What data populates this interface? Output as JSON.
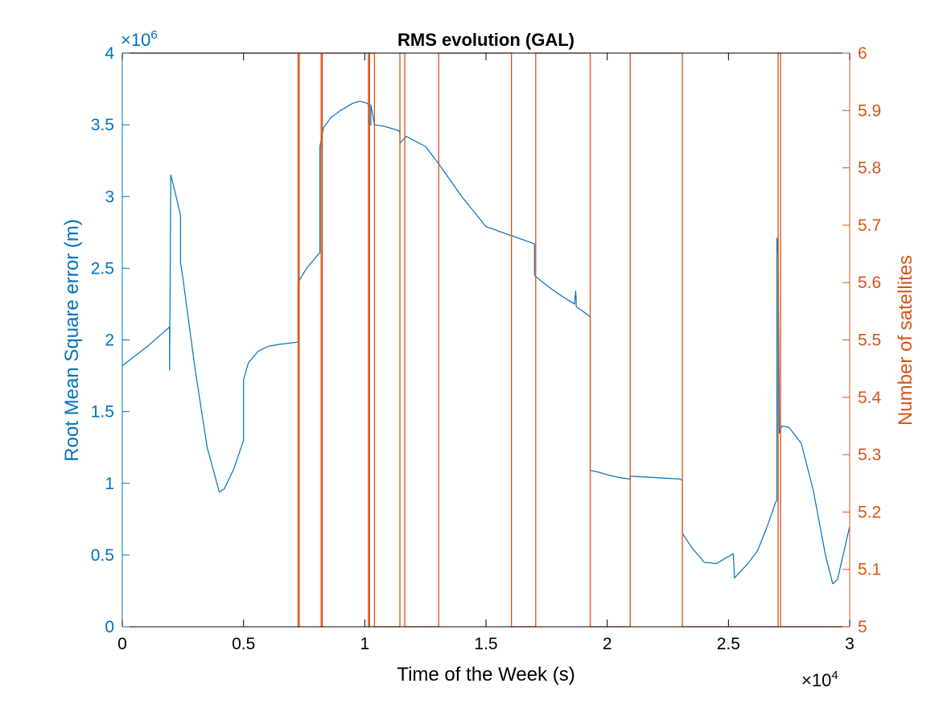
{
  "chart_data": {
    "type": "line",
    "title": "RMS evolution (GAL)",
    "xlabel": "Time of the Week (s)",
    "ylabel_left": "Root Mean Square error (m)",
    "ylabel_right": "Number of satellites",
    "x_multiplier": "×10",
    "x_multiplier_exp": "4",
    "y_left_multiplier": "×10",
    "y_left_multiplier_exp": "6",
    "xlim": [
      0,
      30000
    ],
    "ylim_left": [
      0,
      4000000
    ],
    "ylim_right": [
      5,
      6
    ],
    "x_ticks": [
      0,
      5000,
      10000,
      15000,
      20000,
      25000,
      30000
    ],
    "x_tick_labels": [
      "0",
      "0.5",
      "1",
      "1.5",
      "2",
      "2.5",
      "3"
    ],
    "y_left_ticks": [
      0,
      500000,
      1000000,
      1500000,
      2000000,
      2500000,
      3000000,
      3500000,
      4000000
    ],
    "y_left_tick_labels": [
      "0",
      "0.5",
      "1",
      "1.5",
      "2",
      "2.5",
      "3",
      "3.5",
      "4"
    ],
    "y_right_ticks": [
      5,
      5.1,
      5.2,
      5.3,
      5.4,
      5.5,
      5.6,
      5.7,
      5.8,
      5.9,
      6
    ],
    "y_right_tick_labels": [
      "5",
      "5.1",
      "5.2",
      "5.3",
      "5.4",
      "5.5",
      "5.6",
      "5.7",
      "5.8",
      "5.9",
      "6"
    ],
    "grid": false,
    "colors": {
      "left": "#0072BD",
      "right": "#D95319",
      "axis": "#000000"
    },
    "series": [
      {
        "axis": "left",
        "x": [
          0,
          1000,
          1950,
          1950,
          2000,
          2150,
          2400,
          2400,
          2500,
          3000,
          3500,
          4000,
          4200,
          4600,
          5000,
          5000,
          5200,
          5600,
          6000,
          6500,
          7250,
          7250,
          7600,
          8000,
          8150,
          8150,
          8300,
          8600,
          9000,
          9500,
          9800,
          10100,
          10200,
          10200,
          10250,
          10250,
          10400,
          10800,
          11400,
          11450,
          11450,
          11700,
          12500,
          13000,
          14000,
          15000,
          16000,
          16500,
          17000,
          17000,
          17500,
          18000,
          18650,
          18700,
          18720,
          18720,
          19000,
          19300,
          19300,
          19600,
          20000,
          20500,
          20950,
          20950,
          21500,
          22000,
          23000,
          23100,
          23100,
          23500,
          24000,
          24500,
          25200,
          25250,
          25250,
          25800,
          26200,
          26600,
          26950,
          27000,
          27000,
          27050,
          27100,
          27200,
          27500,
          28000,
          28500,
          29000,
          29300,
          29500,
          29700,
          30000
        ],
        "y": [
          1820000,
          1950000,
          2090000,
          1790000,
          3150000,
          3050000,
          2870000,
          2540000,
          2430000,
          1800000,
          1250000,
          940000,
          960000,
          1100000,
          1300000,
          1720000,
          1840000,
          1920000,
          1955000,
          1970000,
          1985000,
          2400000,
          2500000,
          2580000,
          2610000,
          3350000,
          3480000,
          3550000,
          3600000,
          3650000,
          3665000,
          3650000,
          3630000,
          3500000,
          3500000,
          3640000,
          3500000,
          3490000,
          3460000,
          3440000,
          3370000,
          3420000,
          3350000,
          3240000,
          3000000,
          2790000,
          2730000,
          2700000,
          2670000,
          2450000,
          2380000,
          2320000,
          2250000,
          2340000,
          2280000,
          2230000,
          2200000,
          2160000,
          1090000,
          1080000,
          1060000,
          1040000,
          1030000,
          1050000,
          1045000,
          1040000,
          1030000,
          1020000,
          650000,
          550000,
          450000,
          440000,
          510000,
          340000,
          340000,
          440000,
          530000,
          700000,
          870000,
          880000,
          2710000,
          2600000,
          1350000,
          1400000,
          1390000,
          1280000,
          950000,
          500000,
          300000,
          330000,
          480000,
          700000
        ]
      },
      {
        "axis": "right",
        "x": [
          0,
          7250,
          7250,
          7300,
          7300,
          8200,
          8200,
          8250,
          8250,
          10150,
          10150,
          10200,
          10200,
          10400,
          10400,
          11450,
          11450,
          11650,
          11650,
          13050,
          13050,
          16050,
          16050,
          17050,
          17050,
          19300,
          19300,
          20950,
          20950,
          23100,
          23100,
          27050,
          27050,
          27150,
          27150,
          30000
        ],
        "y": [
          6,
          6,
          5,
          5,
          6,
          6,
          5,
          5,
          6,
          6,
          5,
          5,
          6,
          6,
          5,
          5,
          6,
          6,
          5,
          5,
          6,
          6,
          5,
          5,
          6,
          6,
          5,
          5,
          6,
          6,
          5,
          5,
          6,
          6,
          5,
          5
        ]
      }
    ]
  }
}
